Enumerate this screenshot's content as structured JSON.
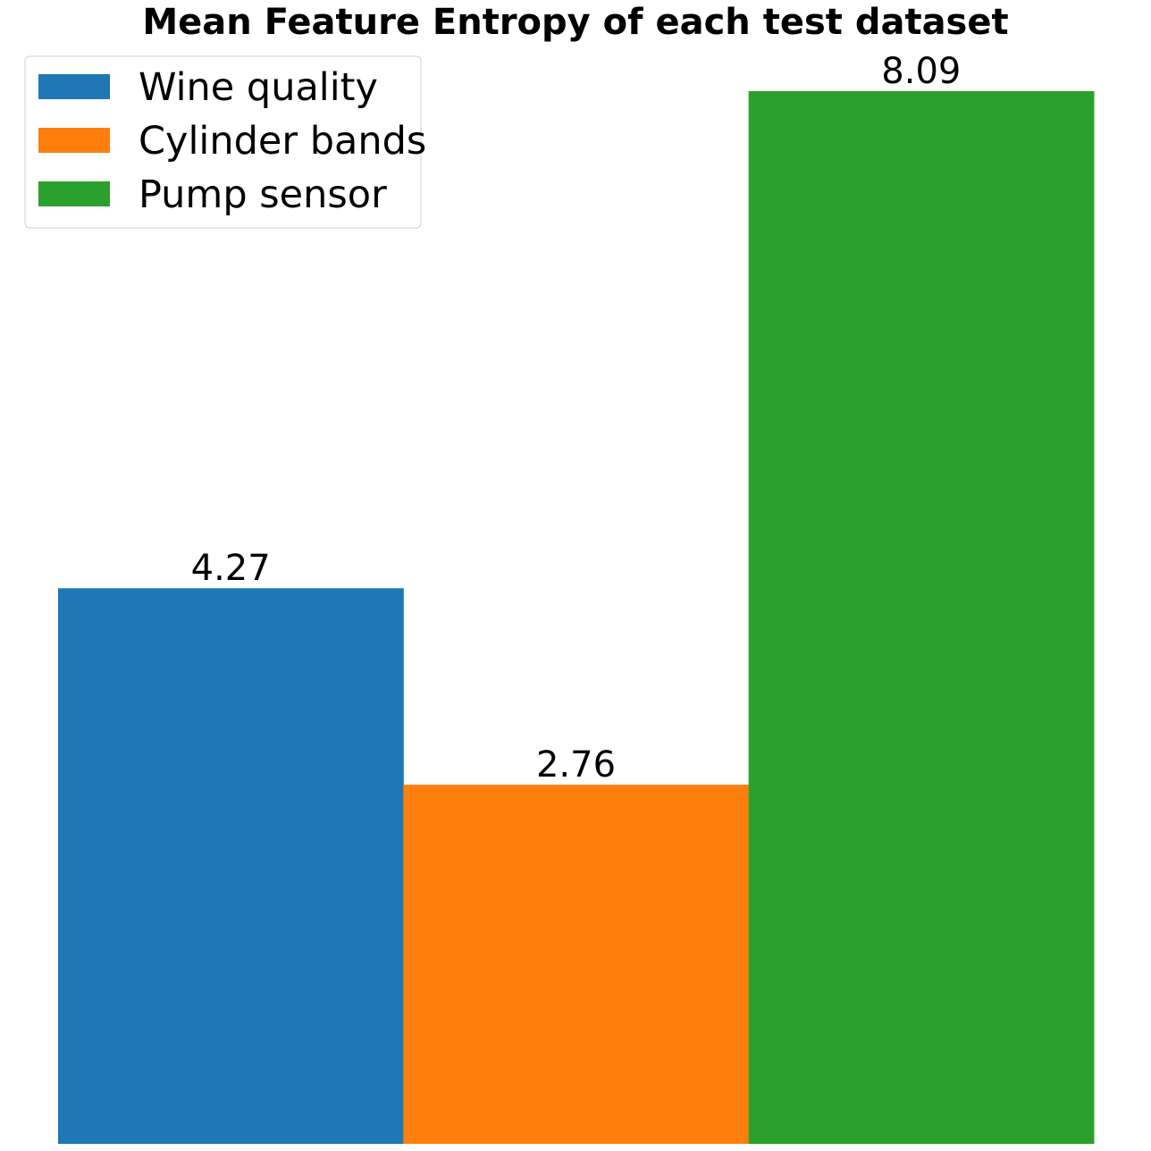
{
  "chart_data": {
    "type": "bar",
    "title": "Mean Feature Entropy of each test dataset",
    "xlabel": "",
    "ylabel": "",
    "categories": [
      "Wine quality",
      "Cylinder bands",
      "Pump sensor"
    ],
    "values": [
      4.27,
      2.76,
      8.09
    ],
    "value_labels": [
      "4.27",
      "2.76",
      "8.09"
    ],
    "colors": [
      "#1f77b4",
      "#ff7f0e",
      "#2ca02c"
    ],
    "ylim": [
      0,
      8.09
    ],
    "axes_visible": false,
    "grid": false,
    "legend": {
      "position": "top-left",
      "entries": [
        "Wine quality",
        "Cylinder bands",
        "Pump sensor"
      ]
    }
  }
}
